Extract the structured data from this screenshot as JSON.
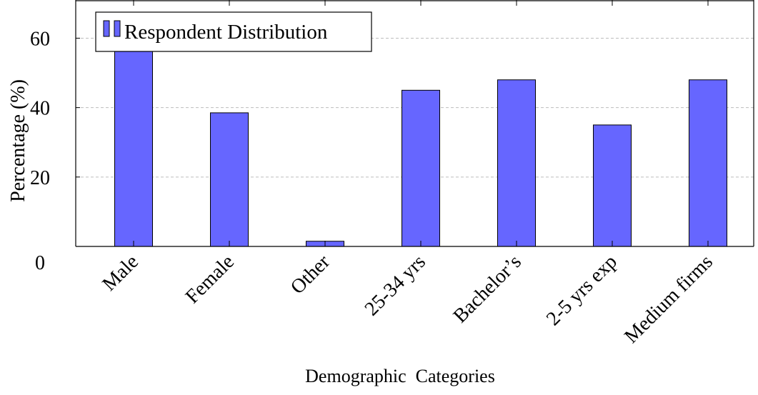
{
  "chart_data": {
    "type": "bar",
    "title": "",
    "xlabel": "Demographic  Categories",
    "ylabel": "Percentage (%)",
    "categories": [
      "Male",
      "Female",
      "Other",
      "25-34 yrs",
      "Bachelor’s",
      "2-5 yrs exp",
      "Medium firms"
    ],
    "series": [
      {
        "name": "Respondent Distribution",
        "values": [
          61.5,
          38.5,
          1.5,
          45,
          48,
          35,
          48
        ],
        "color": "#6666ff"
      }
    ],
    "ylim": [
      0,
      71
    ],
    "yticks": [
      0,
      20,
      40,
      60
    ],
    "grid": "horizontal dashed",
    "legend_position": "top-left"
  }
}
